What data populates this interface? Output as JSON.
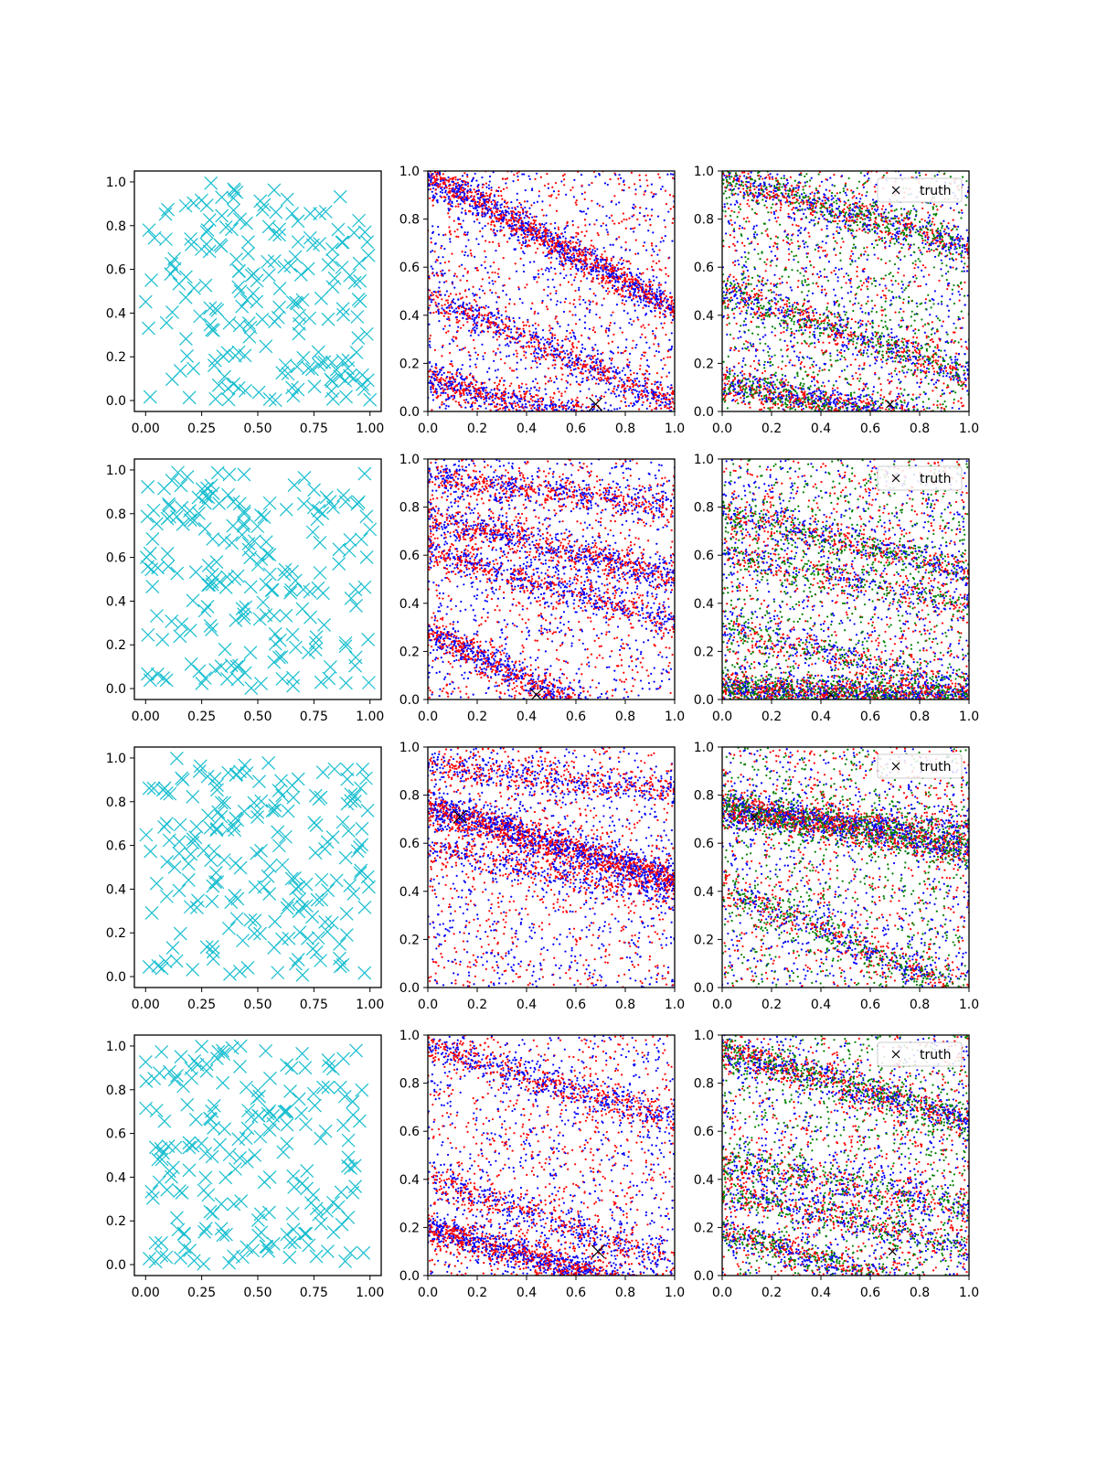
{
  "chart_data": [
    {
      "row": 0,
      "col": 0,
      "type": "scatter",
      "series": [
        {
          "marker": "x-large",
          "color": "#17becf",
          "n": 200
        }
      ],
      "xlim": [
        -0.05,
        1.05
      ],
      "ylim": [
        -0.05,
        1.05
      ],
      "xticks": [
        "0.00",
        "0.25",
        "0.50",
        "0.75",
        "1.00"
      ],
      "yticks": [
        "0.0",
        "0.2",
        "0.4",
        "0.6",
        "0.8",
        "1.0"
      ]
    },
    {
      "row": 0,
      "col": 1,
      "type": "scatter",
      "xlim": [
        0,
        1
      ],
      "ylim": [
        0,
        1
      ],
      "xticks": [
        "0.0",
        "0.2",
        "0.4",
        "0.6",
        "0.8",
        "1.0"
      ],
      "yticks": [
        "0.0",
        "0.2",
        "0.4",
        "0.6",
        "0.8",
        "1.0"
      ],
      "series": [
        {
          "color": "#0000ff",
          "marker": "dot"
        },
        {
          "color": "#ff0000",
          "marker": "dot"
        }
      ],
      "bands": [
        {
          "y0": 0.98,
          "slope": -0.55,
          "n": 1500
        },
        {
          "y0": 0.48,
          "slope": -0.45,
          "n": 800
        },
        {
          "y0": 0.13,
          "slope": -0.25,
          "n": 1000
        }
      ],
      "truth": {
        "x": 0.68,
        "y": 0.03
      }
    },
    {
      "row": 0,
      "col": 2,
      "type": "scatter",
      "xlim": [
        0,
        1
      ],
      "ylim": [
        0,
        1
      ],
      "xticks": [
        "0.0",
        "0.2",
        "0.4",
        "0.6",
        "0.8",
        "1.0"
      ],
      "yticks": [
        "0.0",
        "0.2",
        "0.4",
        "0.6",
        "0.8",
        "1.0"
      ],
      "series": [
        {
          "color": "#0000ff",
          "marker": "dot"
        },
        {
          "color": "#ff0000",
          "marker": "dot"
        },
        {
          "color": "#008000",
          "marker": "dot"
        }
      ],
      "bands": [
        {
          "y0": 0.98,
          "slope": -0.3,
          "n": 900
        },
        {
          "y0": 0.5,
          "slope": -0.35,
          "n": 800
        },
        {
          "y0": 0.12,
          "slope": -0.2,
          "n": 1200
        }
      ],
      "truth": {
        "x": 0.68,
        "y": 0.03
      },
      "legend": "truth"
    },
    {
      "row": 1,
      "col": 0,
      "type": "scatter",
      "series": [
        {
          "marker": "x-large",
          "color": "#17becf",
          "n": 200
        }
      ],
      "xlim": [
        -0.05,
        1.05
      ],
      "ylim": [
        -0.05,
        1.05
      ],
      "xticks": [
        "0.00",
        "0.25",
        "0.50",
        "0.75",
        "1.00"
      ],
      "yticks": [
        "0.0",
        "0.2",
        "0.4",
        "0.6",
        "0.8",
        "1.0"
      ]
    },
    {
      "row": 1,
      "col": 1,
      "type": "scatter",
      "xlim": [
        0,
        1
      ],
      "ylim": [
        0,
        1
      ],
      "xticks": [
        "0.0",
        "0.2",
        "0.4",
        "0.6",
        "0.8",
        "1.0"
      ],
      "yticks": [
        "0.0",
        "0.2",
        "0.4",
        "0.6",
        "0.8",
        "1.0"
      ],
      "series": [
        {
          "color": "#0000ff",
          "marker": "dot"
        },
        {
          "color": "#ff0000",
          "marker": "dot"
        }
      ],
      "bands": [
        {
          "y0": 0.76,
          "slope": -0.25,
          "n": 900
        },
        {
          "y0": 0.62,
          "slope": -0.3,
          "n": 700
        },
        {
          "y0": 0.28,
          "slope": -0.5,
          "n": 1200
        },
        {
          "y0": 0.92,
          "slope": -0.12,
          "n": 700
        }
      ],
      "truth": {
        "x": 0.44,
        "y": 0.02
      }
    },
    {
      "row": 1,
      "col": 2,
      "type": "scatter",
      "xlim": [
        0,
        1
      ],
      "ylim": [
        0,
        1
      ],
      "xticks": [
        "0.0",
        "0.2",
        "0.4",
        "0.6",
        "0.8",
        "1.0"
      ],
      "yticks": [
        "0.0",
        "0.2",
        "0.4",
        "0.6",
        "0.8",
        "1.0"
      ],
      "series": [
        {
          "color": "#0000ff",
          "marker": "dot"
        },
        {
          "color": "#ff0000",
          "marker": "dot"
        },
        {
          "color": "#008000",
          "marker": "dot"
        }
      ],
      "bands": [
        {
          "y0": 0.78,
          "slope": -0.25,
          "n": 700
        },
        {
          "y0": 0.6,
          "slope": -0.2,
          "n": 500
        },
        {
          "y0": 0.3,
          "slope": -0.25,
          "n": 500
        },
        {
          "y0": 0.05,
          "slope": -0.05,
          "n": 1800
        }
      ],
      "truth": {
        "x": 0.44,
        "y": 0.02
      },
      "legend": "truth"
    },
    {
      "row": 2,
      "col": 0,
      "type": "scatter",
      "series": [
        {
          "marker": "x-large",
          "color": "#17becf",
          "n": 200
        }
      ],
      "xlim": [
        -0.05,
        1.05
      ],
      "ylim": [
        -0.05,
        1.05
      ],
      "xticks": [
        "0.00",
        "0.25",
        "0.50",
        "0.75",
        "1.00"
      ],
      "yticks": [
        "0.0",
        "0.2",
        "0.4",
        "0.6",
        "0.8",
        "1.0"
      ]
    },
    {
      "row": 2,
      "col": 1,
      "type": "scatter",
      "xlim": [
        0,
        1
      ],
      "ylim": [
        0,
        1
      ],
      "xticks": [
        "0.0",
        "0.2",
        "0.4",
        "0.6",
        "0.8",
        "1.0"
      ],
      "yticks": [
        "0.0",
        "0.2",
        "0.4",
        "0.6",
        "0.8",
        "1.0"
      ],
      "series": [
        {
          "color": "#0000ff",
          "marker": "dot"
        },
        {
          "color": "#ff0000",
          "marker": "dot"
        }
      ],
      "bands": [
        {
          "y0": 0.75,
          "slope": -0.3,
          "n": 1800
        },
        {
          "y0": 0.92,
          "slope": -0.1,
          "n": 600
        },
        {
          "y0": 0.58,
          "slope": -0.2,
          "n": 500
        }
      ],
      "truth": {
        "x": 0.13,
        "y": 0.71
      }
    },
    {
      "row": 2,
      "col": 2,
      "type": "scatter",
      "xlim": [
        0,
        1
      ],
      "ylim": [
        0,
        1
      ],
      "xticks": [
        "0.0",
        "0.2",
        "0.4",
        "0.6",
        "0.8",
        "1.0"
      ],
      "yticks": [
        "0.0",
        "0.2",
        "0.4",
        "0.6",
        "0.8",
        "1.0"
      ],
      "series": [
        {
          "color": "#0000ff",
          "marker": "dot"
        },
        {
          "color": "#ff0000",
          "marker": "dot"
        },
        {
          "color": "#008000",
          "marker": "dot"
        }
      ],
      "bands": [
        {
          "y0": 0.75,
          "slope": -0.18,
          "n": 1600
        },
        {
          "y0": 0.72,
          "slope": -0.05,
          "n": 700
        },
        {
          "y0": 0.42,
          "slope": -0.45,
          "n": 700
        }
      ],
      "truth": {
        "x": 0.13,
        "y": 0.71
      },
      "legend": "truth"
    },
    {
      "row": 3,
      "col": 0,
      "type": "scatter",
      "series": [
        {
          "marker": "x-large",
          "color": "#17becf",
          "n": 200
        }
      ],
      "xlim": [
        -0.05,
        1.05
      ],
      "ylim": [
        -0.05,
        1.05
      ],
      "xticks": [
        "0.00",
        "0.25",
        "0.50",
        "0.75",
        "1.00"
      ],
      "yticks": [
        "0.0",
        "0.2",
        "0.4",
        "0.6",
        "0.8",
        "1.0"
      ]
    },
    {
      "row": 3,
      "col": 1,
      "type": "scatter",
      "xlim": [
        0,
        1
      ],
      "ylim": [
        0,
        1
      ],
      "xticks": [
        "0.0",
        "0.2",
        "0.4",
        "0.6",
        "0.8",
        "1.0"
      ],
      "yticks": [
        "0.0",
        "0.2",
        "0.4",
        "0.6",
        "0.8",
        "1.0"
      ],
      "series": [
        {
          "color": "#0000ff",
          "marker": "dot"
        },
        {
          "color": "#ff0000",
          "marker": "dot"
        }
      ],
      "bands": [
        {
          "y0": 0.2,
          "slope": -0.3,
          "n": 1600
        },
        {
          "y0": 0.4,
          "slope": -0.35,
          "n": 600
        },
        {
          "y0": 0.95,
          "slope": -0.3,
          "n": 700
        }
      ],
      "truth": {
        "x": 0.69,
        "y": 0.1
      }
    },
    {
      "row": 3,
      "col": 2,
      "type": "scatter",
      "xlim": [
        0,
        1
      ],
      "ylim": [
        0,
        1
      ],
      "xticks": [
        "0.0",
        "0.2",
        "0.4",
        "0.6",
        "0.8",
        "1.0"
      ],
      "yticks": [
        "0.0",
        "0.2",
        "0.4",
        "0.6",
        "0.8",
        "1.0"
      ],
      "series": [
        {
          "color": "#0000ff",
          "marker": "dot"
        },
        {
          "color": "#ff0000",
          "marker": "dot"
        },
        {
          "color": "#008000",
          "marker": "dot"
        }
      ],
      "bands": [
        {
          "y0": 0.94,
          "slope": -0.3,
          "n": 1200
        },
        {
          "y0": 0.48,
          "slope": -0.2,
          "n": 600
        },
        {
          "y0": 0.36,
          "slope": -0.25,
          "n": 600
        },
        {
          "y0": 0.18,
          "slope": -0.3,
          "n": 900
        }
      ],
      "truth": {
        "x": 0.69,
        "y": 0.1
      },
      "legend": "truth"
    }
  ]
}
